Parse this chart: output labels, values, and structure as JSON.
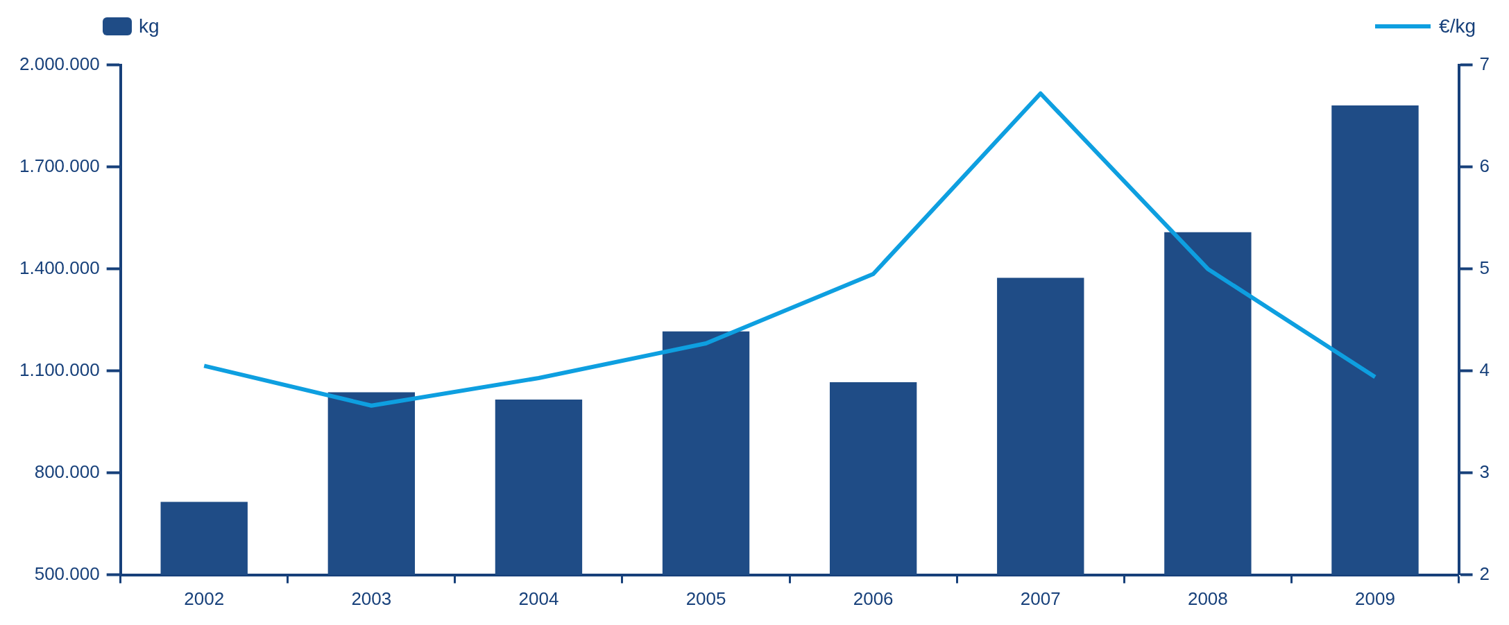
{
  "chart_data": {
    "type": "bar",
    "categories": [
      "2002",
      "2003",
      "2004",
      "2005",
      "2006",
      "2007",
      "2008",
      "2009"
    ],
    "series": [
      {
        "name": "kg",
        "color": "#1f4c86",
        "values": [
          715000,
          1037000,
          1016000,
          1216000,
          1067000,
          1374000,
          1508000,
          1881000
        ]
      },
      {
        "name": "€/kg",
        "type": "line",
        "axis": "y2",
        "color": "#0e9fe0",
        "values": [
          4.05,
          3.66,
          3.93,
          4.27,
          4.95,
          6.72,
          5.0,
          3.94
        ]
      }
    ],
    "ylim": [
      500000,
      2000000
    ],
    "yticks": [
      {
        "value": 500000,
        "label": "500.000"
      },
      {
        "value": 800000,
        "label": "800.000"
      },
      {
        "value": 1100000,
        "label": "1.100.000"
      },
      {
        "value": 1400000,
        "label": "1.400.000"
      },
      {
        "value": 1700000,
        "label": "1.700.000"
      },
      {
        "value": 2000000,
        "label": "2.000.000"
      }
    ],
    "y2lim": [
      2,
      7
    ],
    "y2ticks": [
      2,
      3,
      4,
      5,
      6,
      7
    ],
    "grid": false,
    "legend": "top",
    "marker": "none",
    "line_style": "solid"
  }
}
